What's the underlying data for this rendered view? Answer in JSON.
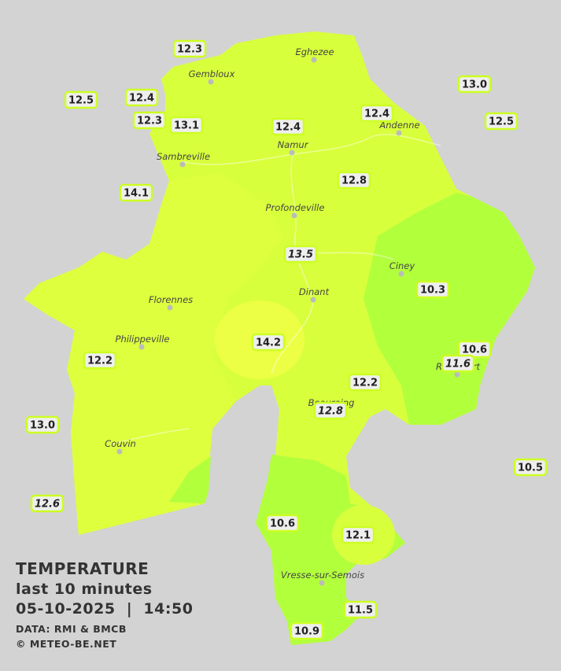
{
  "info": {
    "title": "TEMPERATURE",
    "subtitle": "last 10 minutes",
    "datetime": "05-10-2025  |  14:50",
    "source": "DATA: RMI & BMCB",
    "credit": "© METEO-BE.NET"
  },
  "cities": [
    {
      "name": "Eghezee"
    },
    {
      "name": "Gembloux"
    },
    {
      "name": "Andenne"
    },
    {
      "name": "Namur"
    },
    {
      "name": "Sambreville"
    },
    {
      "name": "Profondeville"
    },
    {
      "name": "Ciney"
    },
    {
      "name": "Dinant"
    },
    {
      "name": "Florennes"
    },
    {
      "name": "Philippeville"
    },
    {
      "name": "Rochefort"
    },
    {
      "name": "Beauraing"
    },
    {
      "name": "Couvin"
    },
    {
      "name": "Vresse-sur-Semois"
    }
  ],
  "stations": [
    {
      "label": "12.3",
      "italic": false
    },
    {
      "label": "12.5",
      "italic": false
    },
    {
      "label": "12.4",
      "italic": false
    },
    {
      "label": "12.3",
      "italic": false
    },
    {
      "label": "13.1",
      "italic": false
    },
    {
      "label": "12.4",
      "italic": false
    },
    {
      "label": "12.4",
      "italic": false
    },
    {
      "label": "13.0",
      "italic": false
    },
    {
      "label": "12.5",
      "italic": false
    },
    {
      "label": "14.1",
      "italic": false
    },
    {
      "label": "12.8",
      "italic": false
    },
    {
      "label": "13.5",
      "italic": true
    },
    {
      "label": "10.3",
      "italic": false
    },
    {
      "label": "14.2",
      "italic": false
    },
    {
      "label": "12.2",
      "italic": false
    },
    {
      "label": "10.6",
      "italic": false
    },
    {
      "label": "11.6",
      "italic": true
    },
    {
      "label": "12.2",
      "italic": false
    },
    {
      "label": "12.8",
      "italic": true
    },
    {
      "label": "13.0",
      "italic": false
    },
    {
      "label": "10.5",
      "italic": false
    },
    {
      "label": "12.6",
      "italic": true
    },
    {
      "label": "10.6",
      "italic": false
    },
    {
      "label": "12.1",
      "italic": false
    },
    {
      "label": "11.5",
      "italic": false
    },
    {
      "label": "10.9",
      "italic": false
    }
  ]
}
